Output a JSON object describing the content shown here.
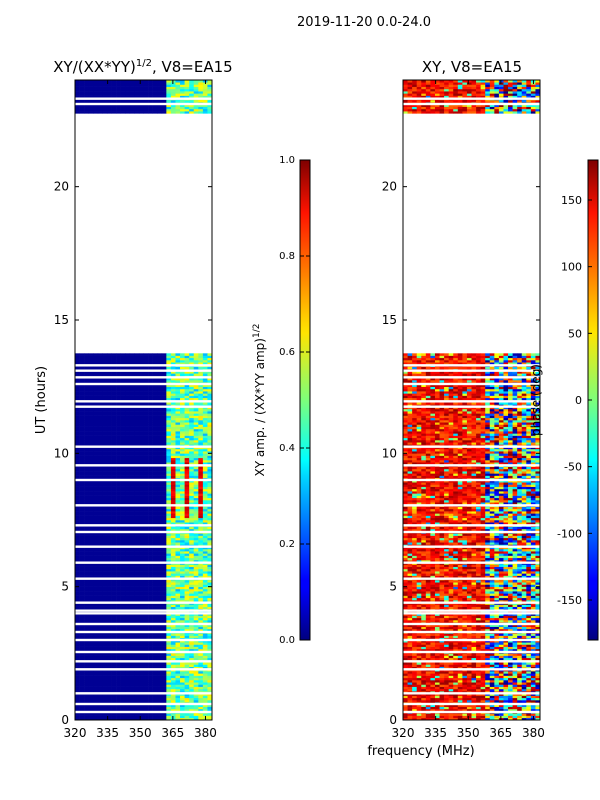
{
  "suptitle": "2019-11-20 0.0-24.0",
  "shared_xlabel": "frequency (MHz)",
  "chart_data": [
    {
      "type": "heatmap",
      "title_main": "XY/(XX*YY)",
      "title_sup": "1/2",
      "title_tail": ", V8=EA15",
      "ylabel": "UT (hours)",
      "xlim": [
        320,
        383
      ],
      "ylim": [
        0,
        24
      ],
      "xticks": [
        320,
        335,
        350,
        365,
        380
      ],
      "yticks": [
        0,
        5,
        10,
        15,
        20
      ],
      "data_rows_hours": [
        [
          0,
          13.75
        ],
        [
          22.75,
          24
        ]
      ],
      "empty_rows_hours": [
        [
          13.75,
          22.75
        ]
      ],
      "signal_channels_mhz": [
        [
          363,
          383
        ]
      ],
      "colorbar": {
        "label_main": "XY amp. / (XX*YY amp)",
        "label_sup": "1/2",
        "range": [
          0.0,
          1.0
        ],
        "ticks": [
          "0.0",
          "0.2",
          "0.4",
          "0.6",
          "0.8",
          "1.0"
        ],
        "colormap": "jet"
      },
      "colors": {
        "background_value": "#00007f"
      }
    },
    {
      "type": "heatmap",
      "title": "XY, V8=EA15",
      "xlim": [
        320,
        383
      ],
      "ylim": [
        0,
        24
      ],
      "xticks": [
        320,
        335,
        350,
        365,
        380
      ],
      "yticks": [
        0,
        5,
        10,
        15,
        20
      ],
      "data_rows_hours": [
        [
          0,
          13.75
        ],
        [
          22.75,
          24
        ]
      ],
      "empty_rows_hours": [
        [
          13.75,
          22.75
        ]
      ],
      "colorbar": {
        "label": "phase (deg)",
        "range": [
          -180,
          180
        ],
        "ticks": [
          "-150",
          "-100",
          "-50",
          "0",
          "50",
          "100",
          "150"
        ],
        "tick_values": [
          -150,
          -100,
          -50,
          0,
          50,
          100,
          150
        ],
        "colormap": "jet"
      }
    }
  ]
}
